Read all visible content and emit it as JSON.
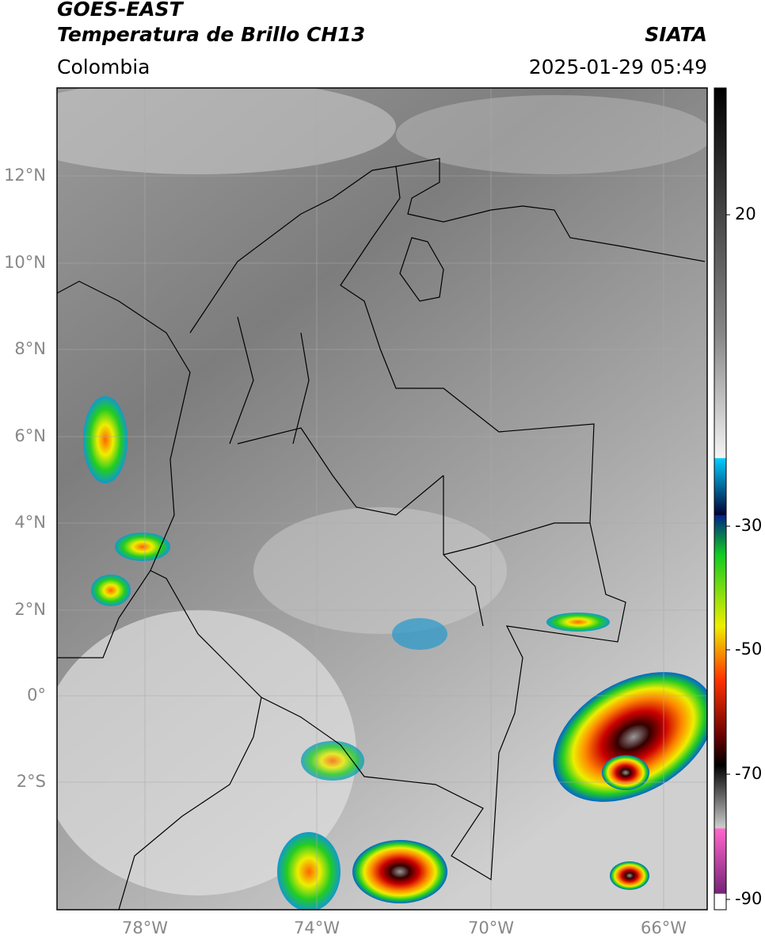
{
  "header": {
    "satellite": "GOES-EAST",
    "product": "Temperatura de Brillo CH13",
    "source": "SIATA",
    "region": "Colombia",
    "datetime": "2025-01-29 05:49"
  },
  "map": {
    "lat_ticks": [
      "12°N",
      "10°N",
      "8°N",
      "6°N",
      "4°N",
      "2°N",
      "0°",
      "2°S"
    ],
    "lon_ticks": [
      "78°W",
      "74°W",
      "70°W",
      "66°W"
    ]
  },
  "colorbar": {
    "ticks": [
      "20",
      "-30",
      "-50",
      "-70",
      "-90"
    ]
  }
}
